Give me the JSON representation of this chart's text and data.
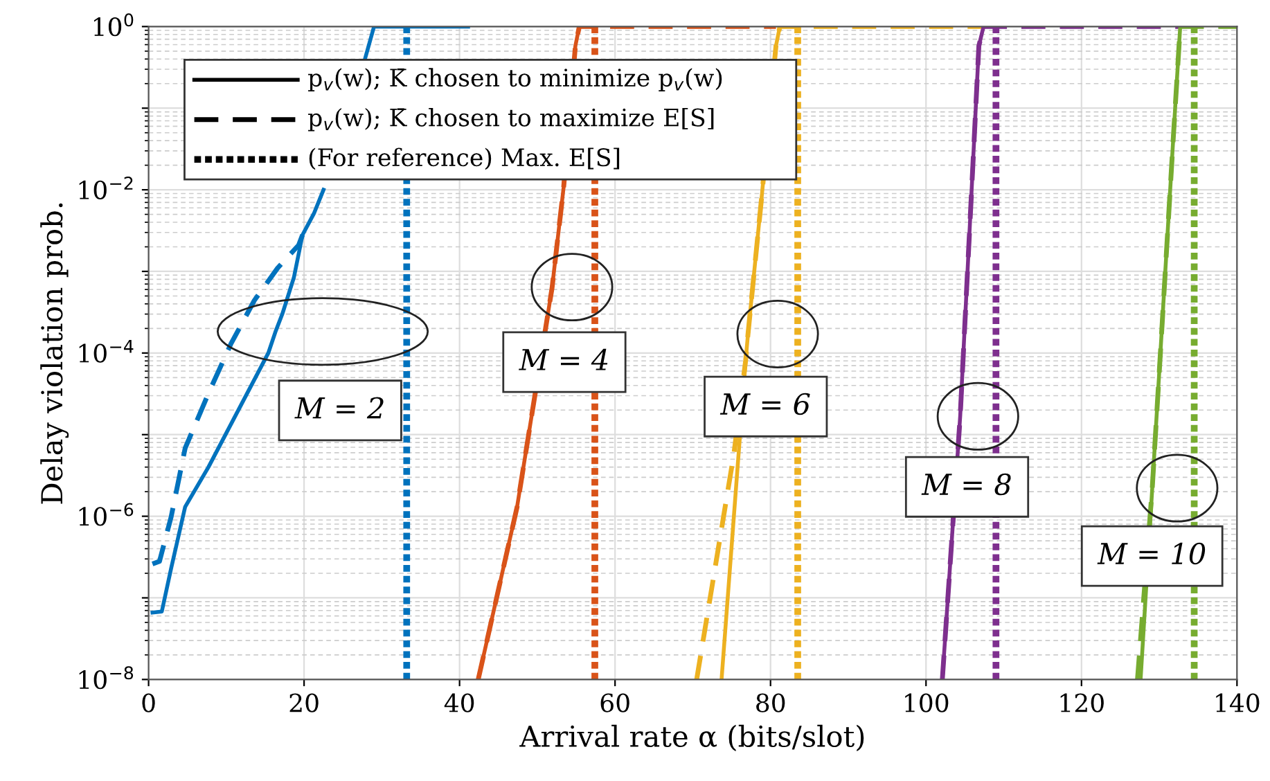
{
  "chart_data": {
    "type": "line",
    "xlabel": "Arrival rate α (bits/slot)",
    "ylabel": "Delay violation prob.",
    "log": "y",
    "grid": true,
    "xlim": [
      0,
      140
    ],
    "xticks": [
      0,
      20,
      40,
      60,
      80,
      100,
      120,
      140
    ],
    "ylim": [
      1e-08,
      1
    ],
    "yticks": [
      {
        "value": 1e-08,
        "label": "10$^{−8}$"
      },
      {
        "value": 1e-07,
        "label": null
      },
      {
        "value": 1e-06,
        "label": "10$^{−6}$"
      },
      {
        "value": 1e-05,
        "label": null
      },
      {
        "value": 0.0001,
        "label": "10$^{−4}$"
      },
      {
        "value": 0.001,
        "label": null
      },
      {
        "value": 0.01,
        "label": "10$^{−2}$"
      },
      {
        "value": 0.1,
        "label": null
      },
      {
        "value": 1,
        "label": "10$^{0}$"
      }
    ],
    "series": [
      {
        "color": "#0072bd",
        "line_style": "dashed",
        "x": [
          0.5,
          1.4,
          2.9,
          4.7,
          7.7,
          10.6,
          13.6,
          16.6,
          19.3,
          19.8
        ],
        "values": [
          2.6e-07,
          2.8e-07,
          9.8e-07,
          6.8e-06,
          3.2e-05,
          0.00013,
          0.00044,
          0.0011,
          0.0021,
          0.0028
        ]
      },
      {
        "color": "#0072bd",
        "line_style": "solid",
        "x": [
          0.5,
          1.7,
          2.9,
          4.7,
          7.7,
          15.4,
          16.3,
          17.2,
          18.7,
          19.8,
          21.3,
          22.5,
          25.5,
          27.8,
          29,
          41.1
        ],
        "values": [
          6.6e-08,
          6.8e-08,
          2.3e-07,
          1.3e-06,
          4e-06,
          0.0001,
          0.00018,
          0.0003,
          0.00085,
          0.0028,
          0.0052,
          0.01,
          null,
          0.39,
          1,
          1
        ]
      },
      {
        "color": "#d95319",
        "line_style": "dashed",
        "x": [
          42.4,
          47.4,
          51.9,
          53.4,
          54.9,
          55.4,
          80.7
        ],
        "values": [
          1e-08,
          1.3e-06,
          0.00063,
          0.011,
          0.58,
          1,
          1
        ]
      },
      {
        "color": "#d95319",
        "line_style": "solid",
        "x": [
          42.4,
          47.4,
          51.9,
          53.4,
          54.9,
          55.4
        ],
        "values": [
          1e-08,
          1.3e-06,
          0.00063,
          0.011,
          0.58,
          1
        ]
      },
      {
        "color": "#edb120",
        "line_style": "dashed",
        "x": [
          70.5,
          75.3,
          76.8,
          77.1,
          78.9,
          80.7,
          81.2,
          107.4
        ],
        "values": [
          1e-08,
          5.9e-06,
          8.1e-05,
          0.00017,
          0.0089,
          0.58,
          1,
          1
        ]
      },
      {
        "color": "#edb120",
        "line_style": "solid",
        "x": [
          73.7,
          76.8,
          77.1,
          78.9,
          80.7,
          81.2
        ],
        "values": [
          1e-08,
          8.1e-05,
          0.00017,
          0.0089,
          0.58,
          1
        ]
      },
      {
        "color": "#7e2f8e",
        "line_style": "dashed",
        "x": [
          102.1,
          104.4,
          105.6,
          106.8,
          107.4,
          132.6
        ],
        "values": [
          1e-08,
          1.7e-05,
          0.0031,
          0.58,
          1,
          1
        ]
      },
      {
        "color": "#7e2f8e",
        "line_style": "solid",
        "x": [
          102.1,
          104.4,
          105.6,
          106.8,
          107.4
        ],
        "values": [
          1e-08,
          1.7e-05,
          0.0031,
          0.58,
          1
        ]
      },
      {
        "color": "#77ac30",
        "line_style": "dashed",
        "x": [
          127.2,
          129.1,
          130.2,
          131.8,
          132.7,
          140
        ],
        "values": [
          1e-08,
          2.2e-06,
          0.00012,
          0.042,
          1,
          1
        ]
      },
      {
        "color": "#77ac30",
        "line_style": "solid",
        "x": [
          127.6,
          129.1,
          130.2,
          131.8,
          132.7
        ],
        "values": [
          1e-08,
          2.2e-06,
          0.00012,
          0.042,
          1
        ]
      }
    ],
    "ref_lines": [
      {
        "axis": "x",
        "value": 33.2,
        "color": "#0072bd",
        "line_style": "dotted"
      },
      {
        "axis": "x",
        "value": 57.4,
        "color": "#d95319",
        "line_style": "dotted"
      },
      {
        "axis": "x",
        "value": 83.5,
        "color": "#edb120",
        "line_style": "dotted"
      },
      {
        "axis": "x",
        "value": 109.0,
        "color": "#7e2f8e",
        "line_style": "dotted"
      },
      {
        "axis": "x",
        "value": 134.5,
        "color": "#77ac30",
        "line_style": "dotted"
      }
    ],
    "annotations": [
      "p$_{v}$(w); K̄ chosen to minimize p$_{v}$(w)",
      "p$_{v}$(w); K̄ chosen to maximize E[S]",
      "(For reference) Max. E[S]",
      "M = 2",
      "M = 4",
      "M = 6",
      "M = 8",
      "M = 10"
    ]
  }
}
